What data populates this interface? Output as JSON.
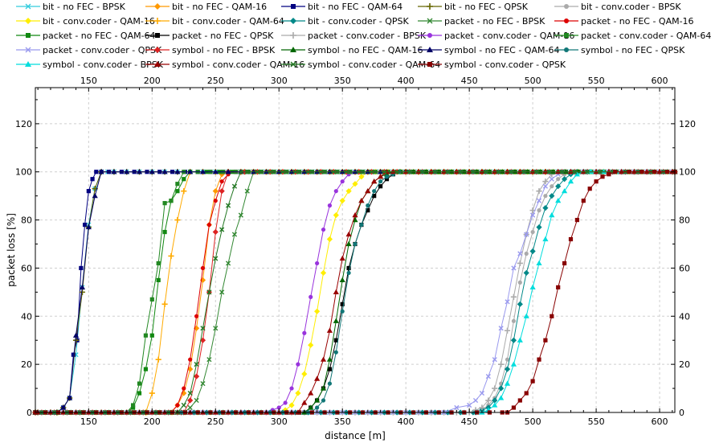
{
  "chart_data": {
    "type": "line",
    "title": "",
    "xlabel": "distance [m]",
    "ylabel": "packet loss [%]",
    "xlim": [
      108,
      612
    ],
    "ylim": [
      0,
      135
    ],
    "x_ticks": [
      150,
      200,
      250,
      300,
      350,
      400,
      450,
      500,
      550,
      600
    ],
    "y_ticks": [
      0,
      20,
      40,
      60,
      80,
      100,
      120
    ],
    "grid": true,
    "legend_position": "top",
    "series": [
      {
        "name": "bit - no FEC - BPSK",
        "color": "#33ccdd",
        "marker": "x",
        "x": [
          108,
          125,
          130,
          135,
          140,
          145,
          150,
          155,
          160,
          165,
          612
        ],
        "y": [
          0,
          0,
          2,
          6,
          24,
          52,
          78,
          93,
          100,
          100,
          100
        ]
      },
      {
        "name": "bit - no FEC - QAM-16",
        "color": "#ff9900",
        "marker": "diamond",
        "x": [
          108,
          215,
          220,
          225,
          230,
          235,
          240,
          245,
          250,
          255,
          260,
          612
        ],
        "y": [
          0,
          0,
          3,
          8,
          18,
          35,
          55,
          78,
          92,
          99,
          100,
          100
        ]
      },
      {
        "name": "bit - no FEC - QAM-64",
        "color": "#000080",
        "marker": "square",
        "x": [
          108,
          125,
          130,
          135,
          138,
          141,
          144,
          147,
          150,
          153,
          156,
          160,
          612
        ],
        "y": [
          0,
          0,
          2,
          6,
          24,
          30,
          60,
          78,
          92,
          97,
          100,
          100,
          100
        ]
      },
      {
        "name": "bit - no FEC - QPSK",
        "color": "#666600",
        "marker": "plus",
        "x": [
          108,
          125,
          130,
          135,
          140,
          145,
          150,
          155,
          160,
          612
        ],
        "y": [
          0,
          0,
          2,
          6,
          30,
          50,
          77,
          93,
          100,
          100
        ]
      },
      {
        "name": "bit - conv.coder - BPSK",
        "color": "#aaaaaa",
        "marker": "circle",
        "x": [
          108,
          455,
          460,
          465,
          470,
          475,
          480,
          485,
          490,
          495,
          500,
          505,
          510,
          515,
          520,
          525,
          530,
          535,
          540,
          612
        ],
        "y": [
          0,
          0,
          1,
          3,
          6,
          12,
          22,
          38,
          54,
          66,
          75,
          84,
          90,
          94,
          97,
          99,
          100,
          100,
          100,
          100
        ]
      },
      {
        "name": "bit - conv.coder - QAM-16",
        "color": "#ffee00",
        "marker": "diamond",
        "x": [
          108,
          300,
          305,
          310,
          315,
          320,
          325,
          330,
          335,
          340,
          345,
          350,
          355,
          360,
          365,
          370,
          612
        ],
        "y": [
          0,
          0,
          1,
          3,
          8,
          16,
          28,
          42,
          58,
          72,
          82,
          88,
          92,
          95,
          98,
          100,
          100
        ]
      },
      {
        "name": "bit - conv.coder - QAM-64",
        "color": "#ffaa00",
        "marker": "plus",
        "x": [
          108,
          195,
          200,
          205,
          210,
          215,
          220,
          225,
          230,
          612
        ],
        "y": [
          0,
          0,
          8,
          22,
          45,
          65,
          80,
          92,
          100,
          100
        ]
      },
      {
        "name": "bit - conv.coder - QPSK",
        "color": "#008888",
        "marker": "diamond",
        "x": [
          108,
          455,
          460,
          465,
          470,
          475,
          480,
          485,
          490,
          495,
          500,
          505,
          510,
          515,
          520,
          525,
          530,
          535,
          540,
          612
        ],
        "y": [
          0,
          0,
          1,
          2,
          5,
          10,
          18,
          30,
          45,
          58,
          67,
          77,
          85,
          90,
          94,
          97,
          99,
          100,
          100,
          100
        ]
      },
      {
        "name": "packet - no FEC - BPSK",
        "color": "#338833",
        "marker": "x",
        "x": [
          108,
          225,
          230,
          235,
          240,
          245,
          250,
          255,
          260,
          265,
          270,
          275,
          280,
          612
        ],
        "y": [
          0,
          0,
          2,
          5,
          12,
          22,
          35,
          50,
          62,
          74,
          82,
          92,
          100,
          100
        ]
      },
      {
        "name": "packet - no FEC - QAM-16",
        "color": "#dd0000",
        "marker": "circle",
        "x": [
          108,
          215,
          220,
          225,
          230,
          235,
          240,
          245,
          250,
          255,
          260,
          265,
          612
        ],
        "y": [
          0,
          0,
          3,
          10,
          22,
          40,
          60,
          78,
          88,
          96,
          99,
          100,
          100
        ]
      },
      {
        "name": "packet - no FEC - QAM-64",
        "color": "#118811",
        "marker": "square",
        "x": [
          108,
          180,
          185,
          190,
          195,
          200,
          205,
          210,
          215,
          220,
          225,
          230,
          612
        ],
        "y": [
          0,
          0,
          2,
          8,
          18,
          32,
          55,
          75,
          88,
          92,
          97,
          100,
          100
        ]
      },
      {
        "name": "packet - no FEC - QPSK",
        "color": "#000000",
        "marker": "square",
        "x": [
          108,
          320,
          325,
          330,
          335,
          340,
          345,
          350,
          355,
          360,
          365,
          370,
          375,
          380,
          385,
          390,
          395,
          400,
          612
        ],
        "y": [
          0,
          0,
          2,
          5,
          10,
          18,
          30,
          45,
          60,
          70,
          78,
          84,
          90,
          94,
          97,
          99,
          100,
          100,
          100
        ]
      },
      {
        "name": "packet - conv.coder - BPSK",
        "color": "#aaaaaa",
        "marker": "plus",
        "x": [
          108,
          450,
          455,
          460,
          465,
          470,
          475,
          480,
          485,
          490,
          495,
          500,
          505,
          510,
          515,
          520,
          525,
          530,
          612
        ],
        "y": [
          0,
          0,
          1,
          2,
          5,
          10,
          20,
          34,
          48,
          62,
          74,
          84,
          92,
          96,
          99,
          100,
          100,
          100,
          100
        ]
      },
      {
        "name": "packet - conv.coder - QAM-16",
        "color": "#9933dd",
        "marker": "circle",
        "x": [
          108,
          290,
          295,
          300,
          305,
          310,
          315,
          320,
          325,
          330,
          335,
          340,
          345,
          350,
          355,
          360,
          365,
          612
        ],
        "y": [
          0,
          0,
          1,
          2,
          4,
          10,
          20,
          33,
          48,
          62,
          76,
          86,
          92,
          96,
          99,
          100,
          100,
          100
        ]
      },
      {
        "name": "packet - conv.coder - QAM-64",
        "color": "#228822",
        "marker": "square",
        "x": [
          108,
          180,
          185,
          190,
          195,
          200,
          205,
          210,
          215,
          220,
          225,
          612
        ],
        "y": [
          0,
          0,
          3,
          12,
          32,
          47,
          62,
          87,
          88,
          95,
          100,
          100
        ]
      },
      {
        "name": "packet - conv.coder - QPSK",
        "color": "#9999ee",
        "marker": "x",
        "x": [
          108,
          430,
          440,
          450,
          455,
          460,
          465,
          470,
          475,
          480,
          485,
          490,
          495,
          500,
          505,
          510,
          515,
          520,
          525,
          612
        ],
        "y": [
          0,
          0,
          2,
          3,
          5,
          8,
          15,
          22,
          35,
          46,
          60,
          66,
          74,
          82,
          88,
          94,
          97,
          99,
          100,
          100
        ]
      },
      {
        "name": "symbol - no FEC - BPSK",
        "color": "#dd2222",
        "marker": "diamond",
        "x": [
          108,
          225,
          230,
          235,
          240,
          245,
          250,
          255,
          260,
          612
        ],
        "y": [
          0,
          0,
          5,
          15,
          30,
          50,
          75,
          92,
          100,
          100
        ]
      },
      {
        "name": "symbol - no FEC - QAM-16",
        "color": "#006600",
        "marker": "triangle",
        "x": [
          108,
          320,
          325,
          330,
          335,
          340,
          345,
          350,
          355,
          360,
          365,
          370,
          375,
          380,
          385,
          390,
          395,
          612
        ],
        "y": [
          0,
          0,
          2,
          5,
          10,
          22,
          38,
          55,
          70,
          80,
          88,
          92,
          96,
          98,
          99,
          100,
          100,
          100
        ]
      },
      {
        "name": "symbol - no FEC - QAM-64",
        "color": "#000066",
        "marker": "triangle",
        "x": [
          108,
          125,
          130,
          135,
          140,
          145,
          150,
          155,
          160,
          612
        ],
        "y": [
          0,
          0,
          2,
          6,
          32,
          52,
          77,
          90,
          100,
          100
        ]
      },
      {
        "name": "symbol - no FEC - QPSK",
        "color": "#117777",
        "marker": "circle",
        "x": [
          108,
          325,
          330,
          335,
          340,
          345,
          350,
          355,
          360,
          365,
          370,
          375,
          380,
          385,
          390,
          395,
          400,
          612
        ],
        "y": [
          0,
          0,
          2,
          5,
          12,
          25,
          42,
          58,
          70,
          78,
          86,
          92,
          96,
          98,
          99,
          100,
          100,
          100
        ]
      },
      {
        "name": "symbol - conv.coder - BPSK",
        "color": "#00dddd",
        "marker": "triangle",
        "x": [
          108,
          460,
          465,
          470,
          475,
          480,
          485,
          490,
          495,
          500,
          505,
          510,
          515,
          520,
          525,
          530,
          535,
          540,
          545,
          612
        ],
        "y": [
          0,
          0,
          1,
          3,
          6,
          12,
          20,
          30,
          40,
          52,
          62,
          72,
          82,
          88,
          92,
          96,
          99,
          100,
          100,
          100
        ]
      },
      {
        "name": "symbol - conv.coder - QAM-16",
        "color": "#990000",
        "marker": "triangle",
        "x": [
          108,
          315,
          320,
          325,
          330,
          335,
          340,
          345,
          350,
          355,
          360,
          365,
          370,
          375,
          380,
          385,
          390,
          612
        ],
        "y": [
          0,
          0,
          4,
          8,
          14,
          22,
          34,
          50,
          64,
          74,
          82,
          88,
          92,
          96,
          98,
          100,
          100,
          100
        ]
      },
      {
        "name": "symbol - conv.coder - QAM-64",
        "color": "#227722",
        "marker": "x",
        "x": [
          108,
          220,
          225,
          230,
          235,
          240,
          245,
          250,
          255,
          260,
          265,
          270,
          275,
          612
        ],
        "y": [
          0,
          0,
          3,
          8,
          20,
          35,
          50,
          64,
          76,
          86,
          94,
          100,
          100,
          100
        ]
      },
      {
        "name": "symbol - conv.coder - QPSK",
        "color": "#880000",
        "marker": "square",
        "x": [
          108,
          480,
          485,
          490,
          495,
          500,
          505,
          510,
          515,
          520,
          525,
          530,
          535,
          540,
          545,
          550,
          555,
          560,
          565,
          612
        ],
        "y": [
          0,
          0,
          2,
          5,
          8,
          13,
          22,
          30,
          40,
          52,
          62,
          72,
          80,
          88,
          93,
          96,
          98,
          99,
          100,
          100
        ]
      }
    ]
  }
}
